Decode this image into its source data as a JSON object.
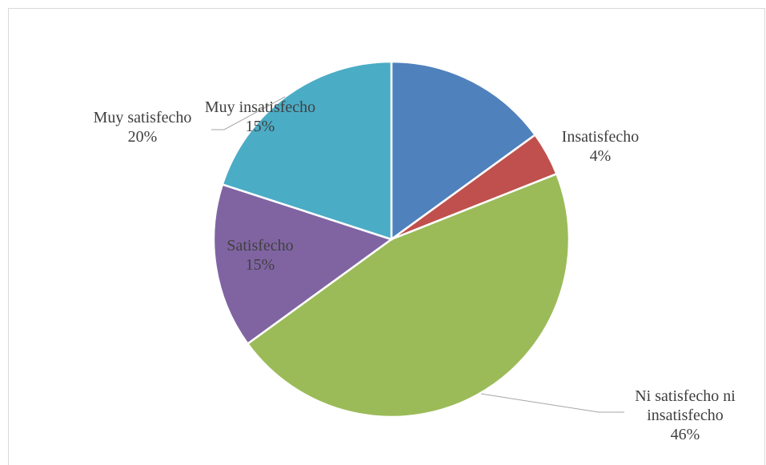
{
  "chart_data": {
    "type": "pie",
    "categories": [
      "Muy insatisfecho",
      "Insatisfecho",
      "Ni satisfecho ni insatisfecho",
      "Satisfecho",
      "Muy satisfecho"
    ],
    "values": [
      15,
      4,
      46,
      15,
      20
    ],
    "colors": [
      "#4f81bd",
      "#c0504d",
      "#9bbb59",
      "#8064a2",
      "#4bacc6"
    ],
    "data_labels": [
      {
        "name_lines": [
          "Muy insatisfecho"
        ],
        "pct": "15%"
      },
      {
        "name_lines": [
          "Insatisfecho"
        ],
        "pct": "4%"
      },
      {
        "name_lines": [
          "Ni satisfecho ni",
          "insatisfecho"
        ],
        "pct": "46%"
      },
      {
        "name_lines": [
          "Satisfecho"
        ],
        "pct": "15%"
      },
      {
        "name_lines": [
          "Muy satisfecho"
        ],
        "pct": "20%"
      }
    ],
    "title": "",
    "legend": "none"
  }
}
